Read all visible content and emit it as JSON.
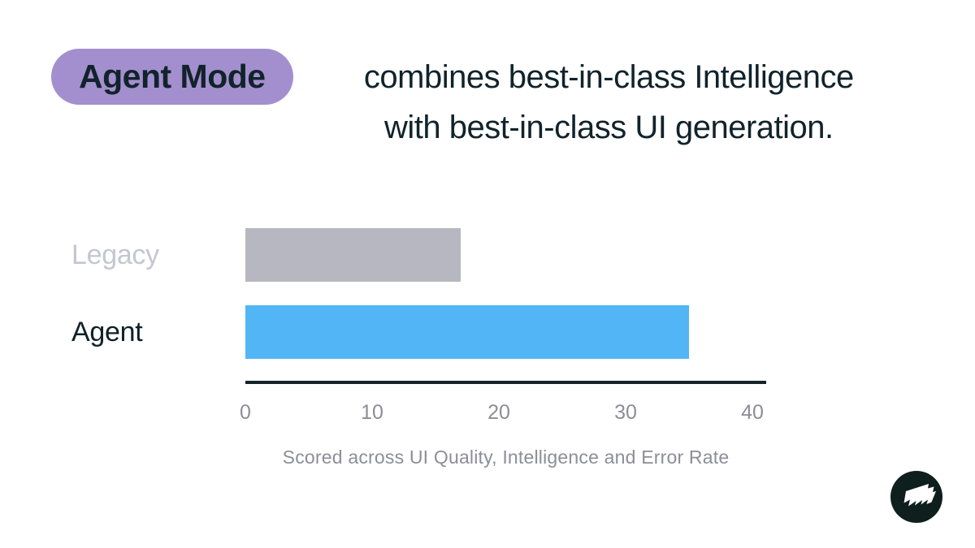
{
  "title": {
    "highlight": "Agent Mode",
    "line1": "combines best-in-class Intelligence",
    "line2": "with best-in-class UI generation."
  },
  "chart_data": {
    "type": "bar",
    "orientation": "horizontal",
    "categories": [
      "Legacy",
      "Agent"
    ],
    "values": [
      17,
      35
    ],
    "xlim": [
      0,
      40
    ],
    "ticks": [
      0,
      10,
      20,
      30,
      40
    ],
    "caption": "Scored across UI Quality, Intelligence and Error Rate",
    "grid": false,
    "legend": false,
    "colors": {
      "legacy_bar": "#b7b7c1",
      "agent_bar": "#52b5f5",
      "legacy_label": "#c6c6d2",
      "agent_label": "#0f2027",
      "axis": "#14242a",
      "muted_text": "#8d8d99"
    }
  },
  "colors": {
    "highlight_pill": "#a48fce",
    "title_text": "#11232b",
    "background": "#ffffff",
    "logo_background": "#0e1f1d",
    "logo_glyph": "#ffffff"
  },
  "icons": {
    "logo": "zigzag-flag-logo"
  }
}
